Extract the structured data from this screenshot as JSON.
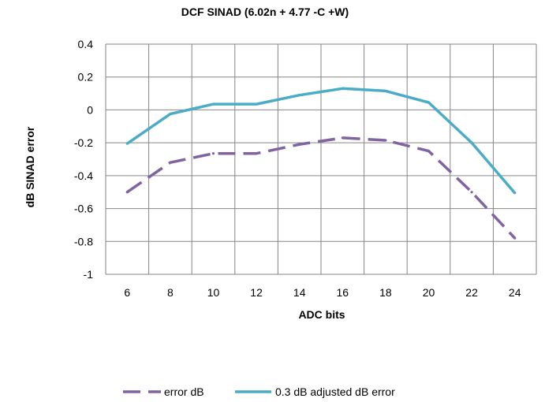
{
  "chart_data": {
    "type": "line",
    "title": "DCF SINAD (6.02n + 4.77 -C +W)",
    "xlabel": "ADC bits",
    "ylabel": "dB SINAD error",
    "categories": [
      "6",
      "8",
      "10",
      "12",
      "14",
      "16",
      "18",
      "20",
      "22",
      "24"
    ],
    "x": [
      6,
      8,
      10,
      12,
      14,
      16,
      18,
      20,
      22,
      24
    ],
    "ylim": [
      -1,
      0.4
    ],
    "yticks": [
      "0.4",
      "0.2",
      "0",
      "-0.2",
      "-0.4",
      "-0.6",
      "-0.8",
      "-1"
    ],
    "ytick_values": [
      0.4,
      0.2,
      0,
      -0.2,
      -0.4,
      -0.6,
      -0.8,
      -1
    ],
    "grid": true,
    "legend_position": "bottom",
    "series": [
      {
        "name": "error dB",
        "color": "#8064a2",
        "dashed": true,
        "values": [
          -0.5,
          -0.32,
          -0.265,
          -0.265,
          -0.21,
          -0.17,
          -0.185,
          -0.25,
          -0.5,
          -0.78
        ]
      },
      {
        "name": "0.3 dB adjusted dB error",
        "color": "#4bacc6",
        "dashed": false,
        "values": [
          -0.205,
          -0.025,
          0.035,
          0.035,
          0.09,
          0.13,
          0.115,
          0.045,
          -0.2,
          -0.505
        ]
      }
    ]
  }
}
